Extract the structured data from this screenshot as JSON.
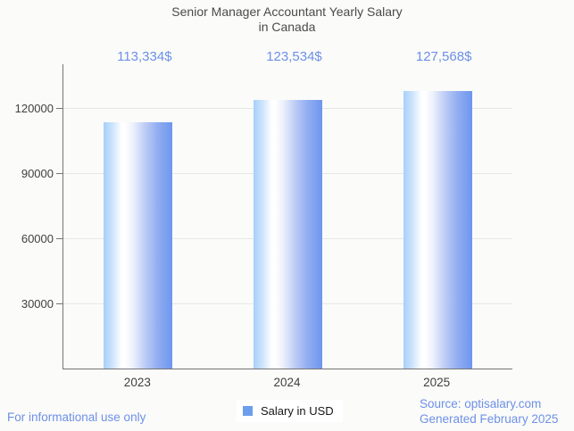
{
  "page": {
    "background": "#fbfbf9",
    "accent_blue": "#6d90e7"
  },
  "header": {
    "title": "Senior Manager Accountant Yearly Salary\nin Canada"
  },
  "chart_data": {
    "type": "bar",
    "title": "Senior Manager Accountant Yearly Salary in Canada",
    "categories": [
      "2023",
      "2024",
      "2025"
    ],
    "series": [
      {
        "name": "Salary in USD",
        "values": [
          113334,
          123534,
          127568
        ]
      }
    ],
    "value_labels": [
      "113,334$",
      "123,534$",
      "127,568$"
    ],
    "xlabel": "",
    "ylabel": "",
    "ylim": [
      0,
      140000
    ],
    "yticks": [
      30000,
      60000,
      90000,
      120000
    ],
    "ytick_labels": [
      "30000",
      "60000",
      "90000",
      "120000"
    ],
    "grid": true,
    "legend_position": "bottom",
    "bar_gradient": [
      "#a6d0fa",
      "#ffffff",
      "#6e96ee"
    ],
    "axis_color": "#757575",
    "gridline_color": "#e7e7e4",
    "tick_label_color": "#3f3f3f",
    "value_label_color": "#6d90e7"
  },
  "legend": {
    "label": "Salary in USD",
    "marker_color": "#6d9eeb"
  },
  "footer": {
    "disclaimer": "For informational use only",
    "source": "Source: optisalary.com",
    "generated": "Generated February 2025"
  }
}
